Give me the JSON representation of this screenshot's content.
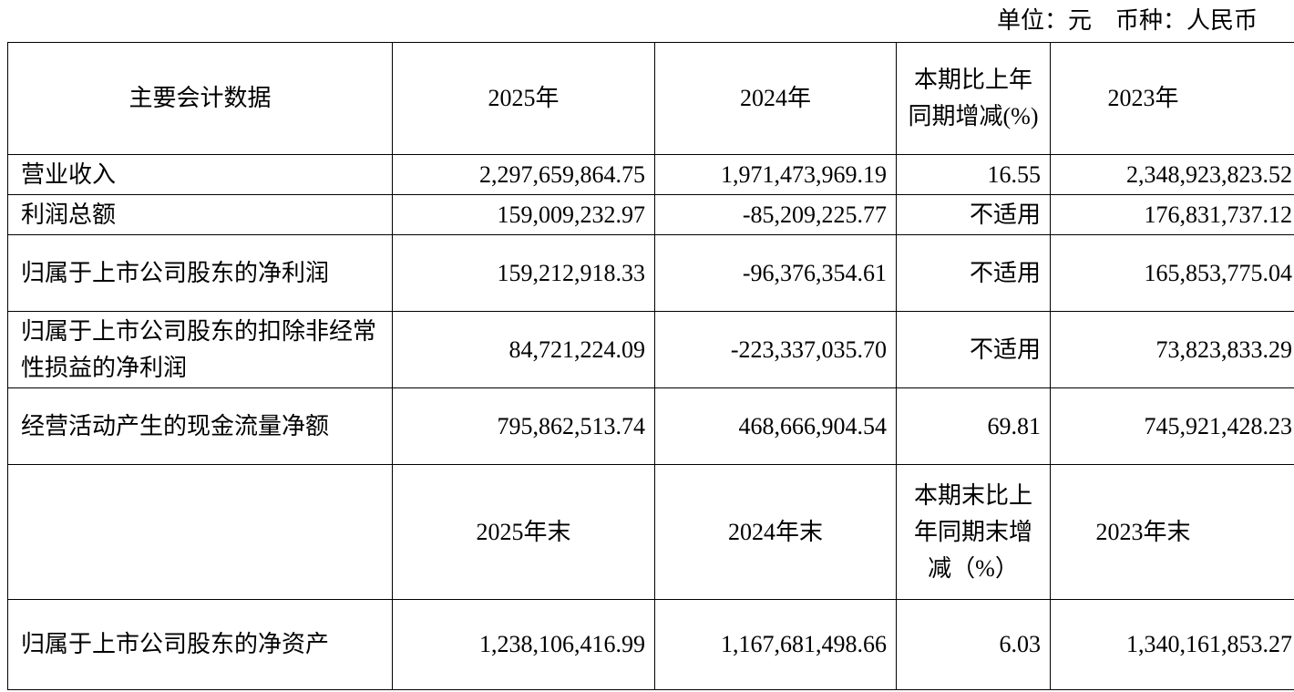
{
  "unit_note": "单位：元    币种：人民币",
  "header1": [
    "主要会计数据",
    "2025年",
    "2024年",
    "本期比上年同期增减(%)",
    "2023年"
  ],
  "rows1": [
    {
      "label": "营业收入",
      "y2025": "2,297,659,864.75",
      "y2024": "1,971,473,969.19",
      "change": "16.55",
      "y2023": "2,348,923,823.52"
    },
    {
      "label": "利润总额",
      "y2025": "159,009,232.97",
      "y2024": "-85,209,225.77",
      "change": "不适用",
      "y2023": "176,831,737.12"
    },
    {
      "label": "归属于上市公司股东的净利润",
      "y2025": "159,212,918.33",
      "y2024": "-96,376,354.61",
      "change": "不适用",
      "y2023": "165,853,775.04"
    },
    {
      "label": "归属于上市公司股东的扣除非经常性损益的净利润",
      "y2025": "84,721,224.09",
      "y2024": "-223,337,035.70",
      "change": "不适用",
      "y2023": "73,823,833.29"
    },
    {
      "label": "经营活动产生的现金流量净额",
      "y2025": "795,862,513.74",
      "y2024": "468,666,904.54",
      "change": "69.81",
      "y2023": "745,921,428.23"
    }
  ],
  "header2": [
    "",
    "2025年末",
    "2024年末",
    "本期末比上年同期末增减（%）",
    "2023年末"
  ],
  "rows2": [
    {
      "label": "归属于上市公司股东的净资产",
      "y2025": "1,238,106,416.99",
      "y2024": "1,167,681,498.66",
      "change": "6.03",
      "y2023": "1,340,161,853.27"
    }
  ]
}
